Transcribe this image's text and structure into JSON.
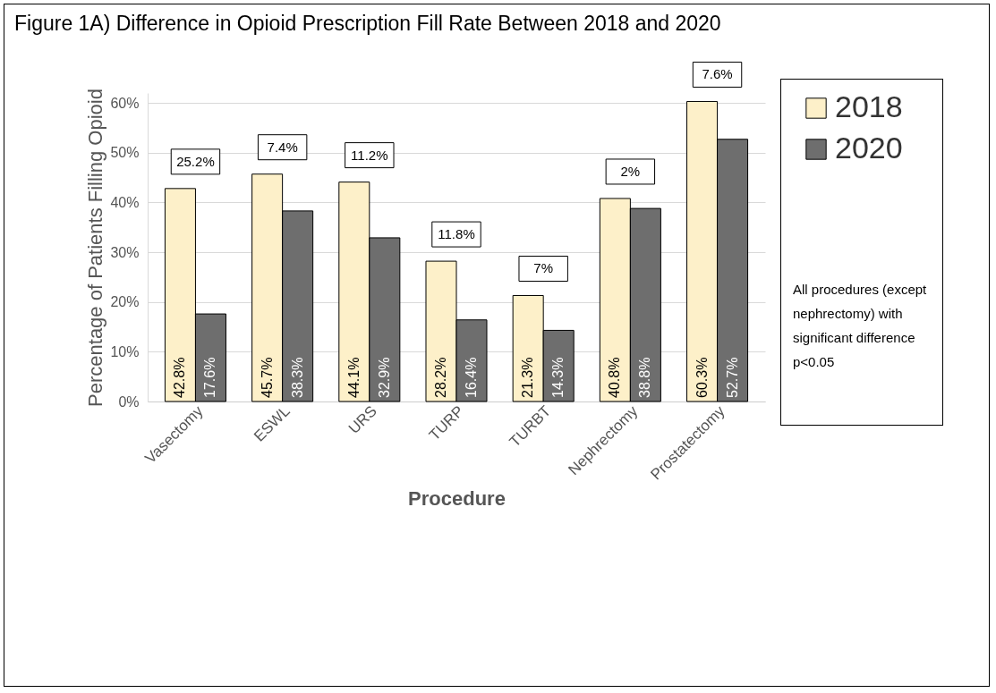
{
  "chart_data": {
    "type": "bar",
    "title": "Figure 1A) Difference in Opioid Prescription Fill Rate Between 2018 and 2020",
    "xlabel": "Procedure",
    "ylabel": "Percentage of Patients Filling Opioid",
    "categories": [
      "Vasectomy",
      "ESWL",
      "URS",
      "TURP",
      "TURBT",
      "Nephrectomy",
      "Prostatectomy"
    ],
    "series": [
      {
        "name": "2018",
        "color": "#fdf0c9",
        "values": [
          42.8,
          45.7,
          44.1,
          28.2,
          21.3,
          40.8,
          60.3
        ],
        "value_labels": [
          "42.8%",
          "45.7%",
          "44.1%",
          "28.2%",
          "21.3%",
          "40.8%",
          "60.3%"
        ]
      },
      {
        "name": "2020",
        "color": "#6e6e6e",
        "values": [
          17.6,
          38.3,
          32.9,
          16.4,
          14.3,
          38.8,
          52.7
        ],
        "value_labels": [
          "17.6%",
          "38.3%",
          "32.9%",
          "16.4%",
          "14.3%",
          "38.8%",
          "52.7%"
        ]
      }
    ],
    "ylim": [
      0,
      62
    ],
    "yticks": [
      {
        "value": 0,
        "label": "0%"
      },
      {
        "value": 10,
        "label": "10%"
      },
      {
        "value": 20,
        "label": "20%"
      },
      {
        "value": 30,
        "label": "30%"
      },
      {
        "value": 40,
        "label": "40%"
      },
      {
        "value": 50,
        "label": "50%"
      },
      {
        "value": 60,
        "label": "60%"
      }
    ],
    "grid": "y",
    "legend": "right",
    "annotations": [
      {
        "text": "25.2%",
        "x": "Vasectomy",
        "y": 42.8
      },
      {
        "text": "7.4%",
        "x": "ESWL",
        "y": 45.7
      },
      {
        "text": "11.2%",
        "x": "URS",
        "y": 44.1
      },
      {
        "text": "11.8%",
        "x": "TURP",
        "y": 28.2
      },
      {
        "text": "7%",
        "x": "TURBT",
        "y": 21.3
      },
      {
        "text": "2%",
        "x": "Nephrectomy",
        "y": 40.8
      },
      {
        "text": "7.6%",
        "x": "Prostatectomy",
        "y": 60.3
      },
      "All procedures (except nephrectomy) with significant difference p<0.05"
    ]
  }
}
